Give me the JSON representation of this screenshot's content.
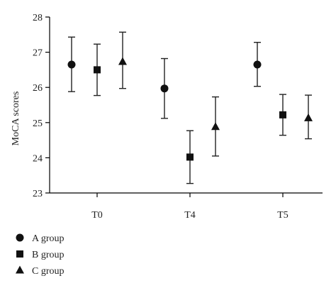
{
  "chart_data": {
    "type": "scatter",
    "title": "",
    "xlabel": "",
    "ylabel": "MoCA scores",
    "ylim": [
      23,
      28
    ],
    "yticks": [
      23,
      24,
      25,
      26,
      27,
      28
    ],
    "categories": [
      "T0",
      "T4",
      "T5"
    ],
    "grid": false,
    "legend_position": "bottom-left",
    "series": [
      {
        "name": "A group",
        "marker": "circle",
        "values": [
          26.65,
          25.97,
          26.65
        ],
        "upper": [
          27.43,
          26.82,
          27.28
        ],
        "lower": [
          25.88,
          25.12,
          26.03
        ]
      },
      {
        "name": "B group",
        "marker": "square",
        "values": [
          26.5,
          24.02,
          25.22
        ],
        "upper": [
          27.23,
          24.77,
          25.8
        ],
        "lower": [
          25.77,
          23.27,
          24.64
        ]
      },
      {
        "name": "C group",
        "marker": "triangle",
        "values": [
          26.73,
          24.88,
          25.13
        ],
        "upper": [
          27.57,
          25.73,
          25.78
        ],
        "lower": [
          25.97,
          24.05,
          24.54
        ]
      }
    ]
  }
}
